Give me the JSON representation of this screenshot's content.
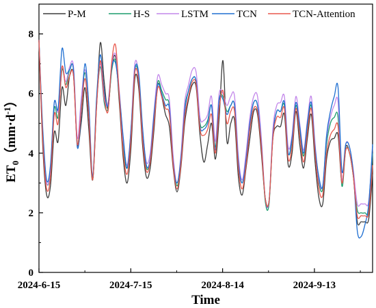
{
  "chart_data": {
    "type": "line",
    "title": "",
    "xlabel": "Time",
    "ylabel": "ET",
    "ylabel_sub": "0",
    "ylabel_unit_open": "（mm·d",
    "ylabel_unit_sup": "-1",
    "ylabel_unit_close": "）",
    "x_start": "2024-6-15",
    "x_end": "2024-10-02",
    "xticks": [
      "2024-6-15",
      "2024-7-15",
      "2024-8-14",
      "2024-9-13"
    ],
    "xtick_days": [
      0,
      30,
      60,
      90
    ],
    "xlim_days": [
      0,
      109
    ],
    "ylim": [
      0,
      9
    ],
    "yticks": [
      0,
      2,
      4,
      6,
      8
    ],
    "grid": false,
    "legend_position": "top",
    "series": [
      {
        "name": "P-M",
        "color": "#3c3c3c",
        "values": [
          7.8,
          4.2,
          2.6,
          2.9,
          4.7,
          4.4,
          6.2,
          5.6,
          6.6,
          6.6,
          4.3,
          5.0,
          6.2,
          4.8,
          3.1,
          5.5,
          7.7,
          6.4,
          5.5,
          6.9,
          7.2,
          5.6,
          3.8,
          3.0,
          4.2,
          6.5,
          6.2,
          4.3,
          3.2,
          3.5,
          4.8,
          6.3,
          5.9,
          5.3,
          4.9,
          3.5,
          2.7,
          3.5,
          5.0,
          5.8,
          6.3,
          6.2,
          4.6,
          3.7,
          4.3,
          5.0,
          3.8,
          5.2,
          7.1,
          4.4,
          5.0,
          5.1,
          3.2,
          2.6,
          3.5,
          4.5,
          5.4,
          5.3,
          4.0,
          2.5,
          2.4,
          4.5,
          4.9,
          4.9,
          5.3,
          3.6,
          4.0,
          5.4,
          4.3,
          3.5,
          4.5,
          5.3,
          3.7,
          2.5,
          2.3,
          3.8,
          4.4,
          4.5,
          4.6,
          3.0,
          4.2,
          4.0,
          3.2,
          1.7,
          1.7,
          1.7,
          1.8,
          3.3
        ]
      },
      {
        "name": "H-S",
        "color": "#1a9c6c",
        "values": [
          7.8,
          4.5,
          3.0,
          3.4,
          5.5,
          5.2,
          6.8,
          6.3,
          6.8,
          6.8,
          4.3,
          5.6,
          6.7,
          5.4,
          3.1,
          5.6,
          6.9,
          5.7,
          5.5,
          6.8,
          7.1,
          5.8,
          4.2,
          3.5,
          4.7,
          6.8,
          6.5,
          4.6,
          3.5,
          3.8,
          5.2,
          6.4,
          6.1,
          5.8,
          5.6,
          3.8,
          2.9,
          3.7,
          5.5,
          6.1,
          6.5,
          6.4,
          5.0,
          4.9,
          5.1,
          5.6,
          4.2,
          5.8,
          5.9,
          5.4,
          5.6,
          5.6,
          3.7,
          3.0,
          3.8,
          5.0,
          5.7,
          5.6,
          4.3,
          2.4,
          2.3,
          4.6,
          5.4,
          5.4,
          5.6,
          4.0,
          4.4,
          5.6,
          4.8,
          3.9,
          4.9,
          5.6,
          4.1,
          3.0,
          2.8,
          4.3,
          5.0,
          5.2,
          5.2,
          2.9,
          4.1,
          4.0,
          3.2,
          2.1,
          2.0,
          2.0,
          2.1,
          4.0
        ]
      },
      {
        "name": "LSTM",
        "color": "#c286ea",
        "values": [
          7.8,
          4.6,
          3.0,
          3.5,
          5.7,
          5.4,
          6.9,
          6.4,
          6.9,
          6.9,
          4.5,
          5.8,
          6.8,
          5.6,
          3.2,
          5.7,
          7.0,
          5.8,
          5.7,
          7.0,
          7.3,
          6.0,
          4.4,
          3.6,
          4.8,
          7.0,
          6.6,
          4.8,
          3.7,
          4.0,
          5.4,
          6.6,
          6.3,
          6.0,
          5.8,
          3.9,
          3.0,
          3.9,
          5.7,
          6.3,
          6.8,
          6.7,
          5.2,
          5.1,
          5.3,
          5.9,
          4.4,
          6.0,
          6.0,
          5.6,
          5.9,
          5.9,
          3.9,
          3.1,
          4.0,
          5.2,
          5.9,
          5.9,
          4.5,
          2.5,
          2.4,
          4.8,
          5.6,
          5.7,
          5.9,
          4.2,
          4.6,
          5.9,
          5.0,
          4.1,
          5.1,
          5.9,
          4.3,
          3.1,
          2.9,
          4.5,
          5.2,
          5.6,
          5.7,
          3.1,
          4.3,
          4.2,
          3.4,
          2.3,
          2.3,
          2.3,
          2.4,
          4.2
        ]
      },
      {
        "name": "TCN",
        "color": "#1f6fd1",
        "values": [
          7.8,
          4.8,
          3.1,
          3.6,
          5.7,
          5.5,
          7.5,
          6.7,
          6.8,
          6.8,
          4.2,
          5.3,
          7.0,
          5.6,
          3.2,
          5.8,
          7.3,
          6.1,
          5.6,
          6.9,
          7.0,
          5.9,
          4.5,
          3.5,
          4.8,
          6.8,
          6.7,
          4.9,
          3.6,
          3.8,
          5.3,
          6.3,
          6.0,
          5.6,
          5.5,
          3.7,
          3.0,
          3.8,
          5.4,
          6.1,
          6.5,
          6.4,
          4.9,
          4.8,
          5.0,
          5.6,
          4.1,
          5.8,
          5.8,
          5.3,
          5.6,
          5.6,
          3.7,
          3.0,
          3.8,
          5.0,
          5.7,
          5.6,
          4.3,
          2.5,
          2.4,
          4.6,
          5.4,
          5.4,
          5.7,
          4.0,
          4.5,
          5.7,
          4.9,
          4.0,
          5.0,
          5.7,
          4.2,
          3.2,
          2.9,
          4.6,
          5.4,
          5.9,
          6.2,
          3.4,
          4.3,
          4.2,
          3.3,
          1.4,
          1.2,
          1.6,
          2.3,
          4.3
        ]
      },
      {
        "name": "TCN-Attention",
        "color": "#e8574c",
        "values": [
          7.8,
          4.4,
          2.8,
          3.2,
          5.3,
          5.0,
          6.9,
          6.2,
          6.6,
          6.6,
          4.3,
          5.4,
          6.5,
          5.2,
          3.1,
          5.5,
          7.1,
          5.9,
          5.4,
          7.1,
          7.6,
          5.8,
          4.0,
          3.3,
          4.5,
          6.7,
          6.4,
          4.5,
          3.4,
          3.7,
          5.0,
          6.2,
          5.9,
          5.5,
          5.3,
          3.6,
          2.8,
          3.6,
          5.2,
          5.9,
          6.4,
          6.3,
          4.8,
          4.6,
          4.8,
          5.3,
          4.0,
          5.5,
          6.1,
          5.0,
          5.4,
          5.4,
          3.5,
          2.8,
          3.6,
          4.8,
          5.5,
          5.4,
          4.2,
          2.5,
          2.4,
          4.5,
          5.2,
          5.2,
          5.5,
          3.8,
          4.2,
          5.5,
          4.6,
          3.7,
          4.7,
          5.5,
          4.0,
          2.8,
          2.6,
          4.0,
          4.6,
          4.8,
          4.9,
          3.0,
          4.1,
          4.0,
          3.2,
          1.9,
          1.9,
          1.9,
          2.0,
          3.6
        ]
      }
    ]
  }
}
